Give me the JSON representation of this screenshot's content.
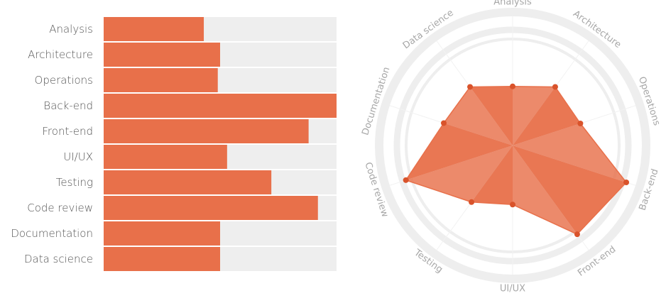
{
  "chart_data": [
    {
      "type": "bar",
      "orientation": "horizontal",
      "categories": [
        "Analysis",
        "Architecture",
        "Operations",
        "Back-end",
        "Front-end",
        "UI/UX",
        "Testing",
        "Code review",
        "Documentation",
        "Data science"
      ],
      "values": [
        43,
        50,
        49,
        100,
        88,
        53,
        72,
        92,
        50,
        50
      ],
      "xlim": [
        0,
        100
      ],
      "colors": {
        "bar": "#e8704a",
        "track": "#eeeeee"
      }
    },
    {
      "type": "radar",
      "categories": [
        "Analysis",
        "Architecture",
        "Operations",
        "Back-end",
        "Front-end",
        "UI/UX",
        "Testing",
        "Code review",
        "Documentation",
        "Data science"
      ],
      "values": [
        49,
        60,
        59,
        99,
        91,
        49,
        58,
        93,
        60,
        60
      ],
      "rlim": [
        0,
        100
      ],
      "colors": {
        "fill": "#e8704a",
        "point": "#d9532b",
        "ring": "#eeeeee",
        "label": "#a7a7a7"
      }
    }
  ]
}
